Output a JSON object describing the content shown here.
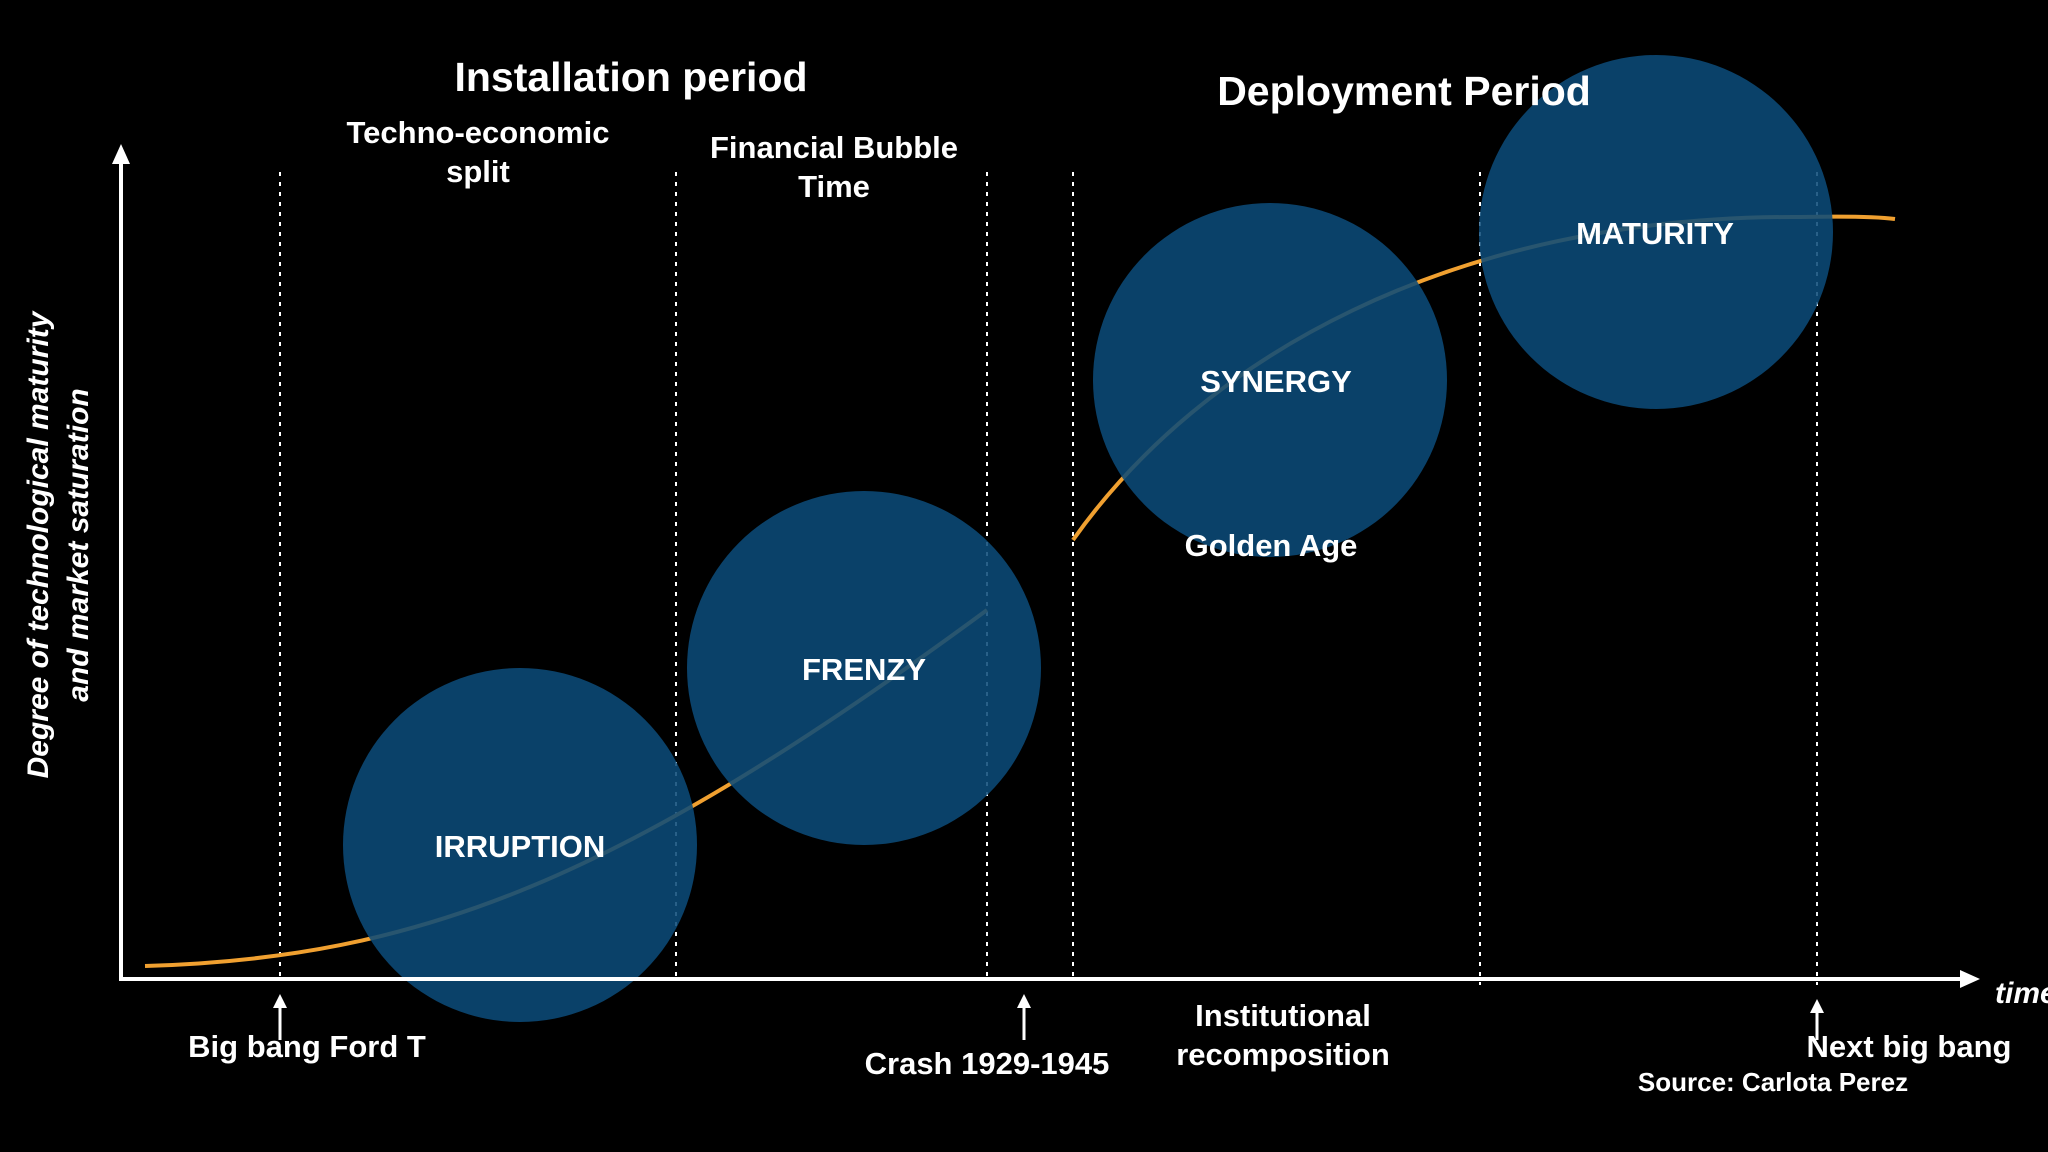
{
  "colors": {
    "background": "#000000",
    "circle": "#0b4a78",
    "curve": "#f0a030",
    "axes": "#ffffff",
    "text": "#ffffff"
  },
  "periods": {
    "installation": "Installation period",
    "deployment": "Deployment Period"
  },
  "phase_notes": {
    "techno_economic_1": "Techno-economic",
    "techno_economic_2": "split",
    "bubble_1": "Financial Bubble",
    "bubble_2": "Time",
    "golden_age": "Golden Age",
    "institutional_1": "Institutional",
    "institutional_2": "recomposition"
  },
  "phases": {
    "irruption": "IRRUPTION",
    "frenzy": "FRENZY",
    "synergy": "SYNERGY",
    "maturity": "MATURITY"
  },
  "axes": {
    "y_line1": "Degree of technological maturity",
    "y_line2": "and market saturation",
    "x": "time"
  },
  "events": {
    "big_bang": "Big bang Ford T",
    "crash": "Crash  1929-1945",
    "next": "Next big bang"
  },
  "source": "Source: Carlota Perez"
}
